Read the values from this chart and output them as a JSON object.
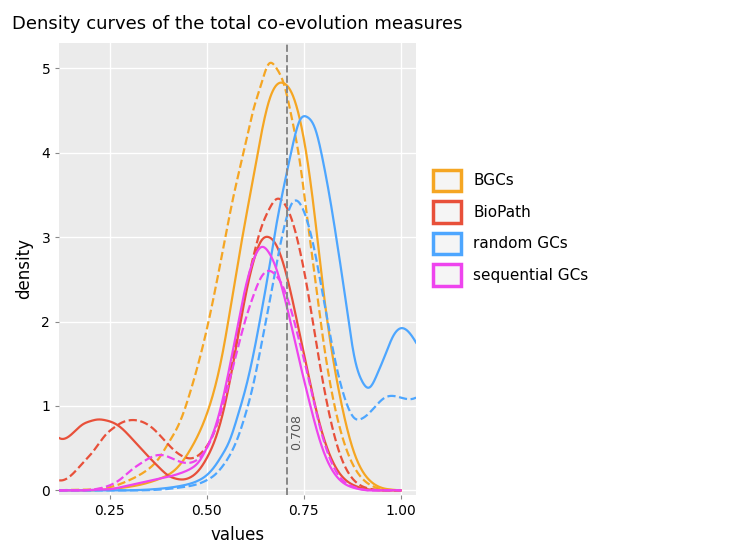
{
  "title": "Density curves of the total co-evolution measures",
  "xlabel": "values",
  "ylabel": "density",
  "vline_x": 0.708,
  "vline_label": "0.708",
  "colors": {
    "BGCs": "#F5A623",
    "BioPath": "#E8503A",
    "random GCs": "#4DA6FF",
    "sequential GCs": "#EE44EE"
  },
  "xlim": [
    0.12,
    1.04
  ],
  "ylim": [
    -0.05,
    5.3
  ],
  "xticks": [
    0.25,
    0.5,
    0.75,
    1.0
  ],
  "yticks": [
    0,
    1,
    2,
    3,
    4,
    5
  ],
  "background_color": "#EBEBEB",
  "grid_color": "white",
  "figsize": [
    7.46,
    5.59
  ],
  "dpi": 100,
  "BGCs_solid": {
    "x": [
      0.12,
      0.2,
      0.28,
      0.34,
      0.38,
      0.42,
      0.46,
      0.5,
      0.54,
      0.57,
      0.6,
      0.62,
      0.64,
      0.66,
      0.68,
      0.7,
      0.72,
      0.74,
      0.76,
      0.78,
      0.8,
      0.84,
      0.88,
      0.92,
      0.96,
      1.0
    ],
    "y": [
      0.0,
      0.0,
      0.03,
      0.08,
      0.14,
      0.25,
      0.5,
      0.9,
      1.6,
      2.4,
      3.2,
      3.7,
      4.2,
      4.6,
      4.8,
      4.82,
      4.7,
      4.4,
      3.9,
      3.2,
      2.4,
      1.2,
      0.45,
      0.12,
      0.02,
      0.0
    ]
  },
  "BGCs_dashed": {
    "x": [
      0.12,
      0.2,
      0.26,
      0.3,
      0.34,
      0.38,
      0.4,
      0.43,
      0.46,
      0.5,
      0.54,
      0.57,
      0.6,
      0.62,
      0.64,
      0.66,
      0.68,
      0.7,
      0.72,
      0.74,
      0.76,
      0.78,
      0.8,
      0.84,
      0.88,
      0.92,
      0.96,
      1.0
    ],
    "y": [
      0.0,
      0.01,
      0.05,
      0.12,
      0.22,
      0.4,
      0.55,
      0.8,
      1.2,
      1.9,
      2.8,
      3.5,
      4.1,
      4.5,
      4.8,
      5.05,
      5.0,
      4.8,
      4.4,
      3.9,
      3.2,
      2.5,
      1.8,
      0.8,
      0.28,
      0.07,
      0.01,
      0.0
    ]
  },
  "BioPath_solid": {
    "x": [
      0.12,
      0.16,
      0.18,
      0.2,
      0.22,
      0.24,
      0.26,
      0.28,
      0.3,
      0.34,
      0.38,
      0.4,
      0.42,
      0.44,
      0.46,
      0.48,
      0.5,
      0.52,
      0.54,
      0.56,
      0.58,
      0.6,
      0.62,
      0.64,
      0.66,
      0.68,
      0.7,
      0.72,
      0.74,
      0.76,
      0.78,
      0.8,
      0.84,
      0.88,
      0.92,
      0.96,
      1.0
    ],
    "y": [
      0.62,
      0.7,
      0.78,
      0.82,
      0.84,
      0.83,
      0.8,
      0.74,
      0.65,
      0.45,
      0.26,
      0.18,
      0.14,
      0.13,
      0.16,
      0.24,
      0.38,
      0.58,
      0.88,
      1.3,
      1.8,
      2.3,
      2.7,
      2.95,
      3.0,
      2.9,
      2.65,
      2.28,
      1.85,
      1.42,
      1.0,
      0.65,
      0.22,
      0.06,
      0.01,
      0.0,
      0.0
    ]
  },
  "BioPath_dashed": {
    "x": [
      0.12,
      0.16,
      0.18,
      0.2,
      0.22,
      0.24,
      0.26,
      0.28,
      0.3,
      0.34,
      0.36,
      0.38,
      0.4,
      0.42,
      0.44,
      0.46,
      0.48,
      0.5,
      0.52,
      0.54,
      0.56,
      0.58,
      0.6,
      0.62,
      0.64,
      0.66,
      0.68,
      0.7,
      0.72,
      0.74,
      0.76,
      0.78,
      0.8,
      0.84,
      0.88,
      0.92,
      0.96,
      1.0
    ],
    "y": [
      0.12,
      0.22,
      0.32,
      0.42,
      0.54,
      0.66,
      0.74,
      0.8,
      0.83,
      0.8,
      0.74,
      0.65,
      0.55,
      0.46,
      0.4,
      0.38,
      0.42,
      0.52,
      0.7,
      1.0,
      1.4,
      1.88,
      2.35,
      2.76,
      3.1,
      3.32,
      3.45,
      3.4,
      3.2,
      2.85,
      2.38,
      1.82,
      1.28,
      0.48,
      0.12,
      0.02,
      0.0,
      0.0
    ]
  },
  "random_solid": {
    "x": [
      0.12,
      0.2,
      0.28,
      0.35,
      0.4,
      0.44,
      0.48,
      0.5,
      0.52,
      0.54,
      0.56,
      0.58,
      0.6,
      0.62,
      0.64,
      0.66,
      0.68,
      0.7,
      0.72,
      0.74,
      0.76,
      0.78,
      0.8,
      0.82,
      0.84,
      0.86,
      0.88,
      0.9,
      0.92,
      0.94,
      0.96,
      0.98,
      1.0,
      1.02,
      1.04
    ],
    "y": [
      0.0,
      0.0,
      0.0,
      0.01,
      0.03,
      0.06,
      0.12,
      0.18,
      0.28,
      0.42,
      0.6,
      0.88,
      1.2,
      1.6,
      2.08,
      2.6,
      3.15,
      3.62,
      4.05,
      4.38,
      4.42,
      4.28,
      3.9,
      3.4,
      2.82,
      2.2,
      1.6,
      1.3,
      1.22,
      1.38,
      1.6,
      1.82,
      1.92,
      1.88,
      1.75
    ]
  },
  "random_dashed": {
    "x": [
      0.12,
      0.2,
      0.3,
      0.38,
      0.44,
      0.48,
      0.5,
      0.52,
      0.54,
      0.56,
      0.58,
      0.6,
      0.62,
      0.64,
      0.66,
      0.68,
      0.7,
      0.72,
      0.74,
      0.76,
      0.78,
      0.8,
      0.82,
      0.84,
      0.86,
      0.88,
      0.9,
      0.92,
      0.96,
      1.0,
      1.04
    ],
    "y": [
      0.0,
      0.0,
      0.0,
      0.01,
      0.04,
      0.08,
      0.12,
      0.18,
      0.28,
      0.42,
      0.62,
      0.9,
      1.25,
      1.7,
      2.18,
      2.68,
      3.12,
      3.4,
      3.4,
      3.18,
      2.8,
      2.3,
      1.8,
      1.36,
      1.04,
      0.86,
      0.85,
      0.92,
      1.1,
      1.1,
      1.1
    ]
  },
  "sequential_solid": {
    "x": [
      0.12,
      0.18,
      0.22,
      0.26,
      0.28,
      0.3,
      0.34,
      0.38,
      0.4,
      0.43,
      0.46,
      0.48,
      0.5,
      0.52,
      0.54,
      0.56,
      0.58,
      0.6,
      0.62,
      0.64,
      0.66,
      0.68,
      0.7,
      0.72,
      0.74,
      0.76,
      0.78,
      0.8,
      0.84,
      0.88,
      0.92,
      0.96,
      1.0
    ],
    "y": [
      0.0,
      0.0,
      0.01,
      0.02,
      0.04,
      0.06,
      0.1,
      0.14,
      0.16,
      0.2,
      0.26,
      0.34,
      0.5,
      0.72,
      1.05,
      1.48,
      1.95,
      2.4,
      2.72,
      2.88,
      2.82,
      2.62,
      2.3,
      1.92,
      1.52,
      1.14,
      0.78,
      0.48,
      0.14,
      0.03,
      0.0,
      0.0,
      0.0
    ]
  },
  "sequential_dashed": {
    "x": [
      0.12,
      0.18,
      0.22,
      0.25,
      0.28,
      0.3,
      0.33,
      0.36,
      0.38,
      0.4,
      0.42,
      0.44,
      0.46,
      0.48,
      0.5,
      0.52,
      0.54,
      0.56,
      0.58,
      0.6,
      0.62,
      0.64,
      0.66,
      0.68,
      0.7,
      0.72,
      0.74,
      0.76,
      0.78,
      0.8,
      0.84,
      0.88,
      0.92,
      0.96,
      1.0
    ],
    "y": [
      0.0,
      0.0,
      0.02,
      0.06,
      0.14,
      0.22,
      0.32,
      0.4,
      0.42,
      0.4,
      0.36,
      0.33,
      0.33,
      0.38,
      0.5,
      0.7,
      0.98,
      1.32,
      1.68,
      2.02,
      2.3,
      2.52,
      2.6,
      2.54,
      2.38,
      2.1,
      1.75,
      1.38,
      0.98,
      0.62,
      0.18,
      0.04,
      0.0,
      0.0,
      0.0
    ]
  }
}
